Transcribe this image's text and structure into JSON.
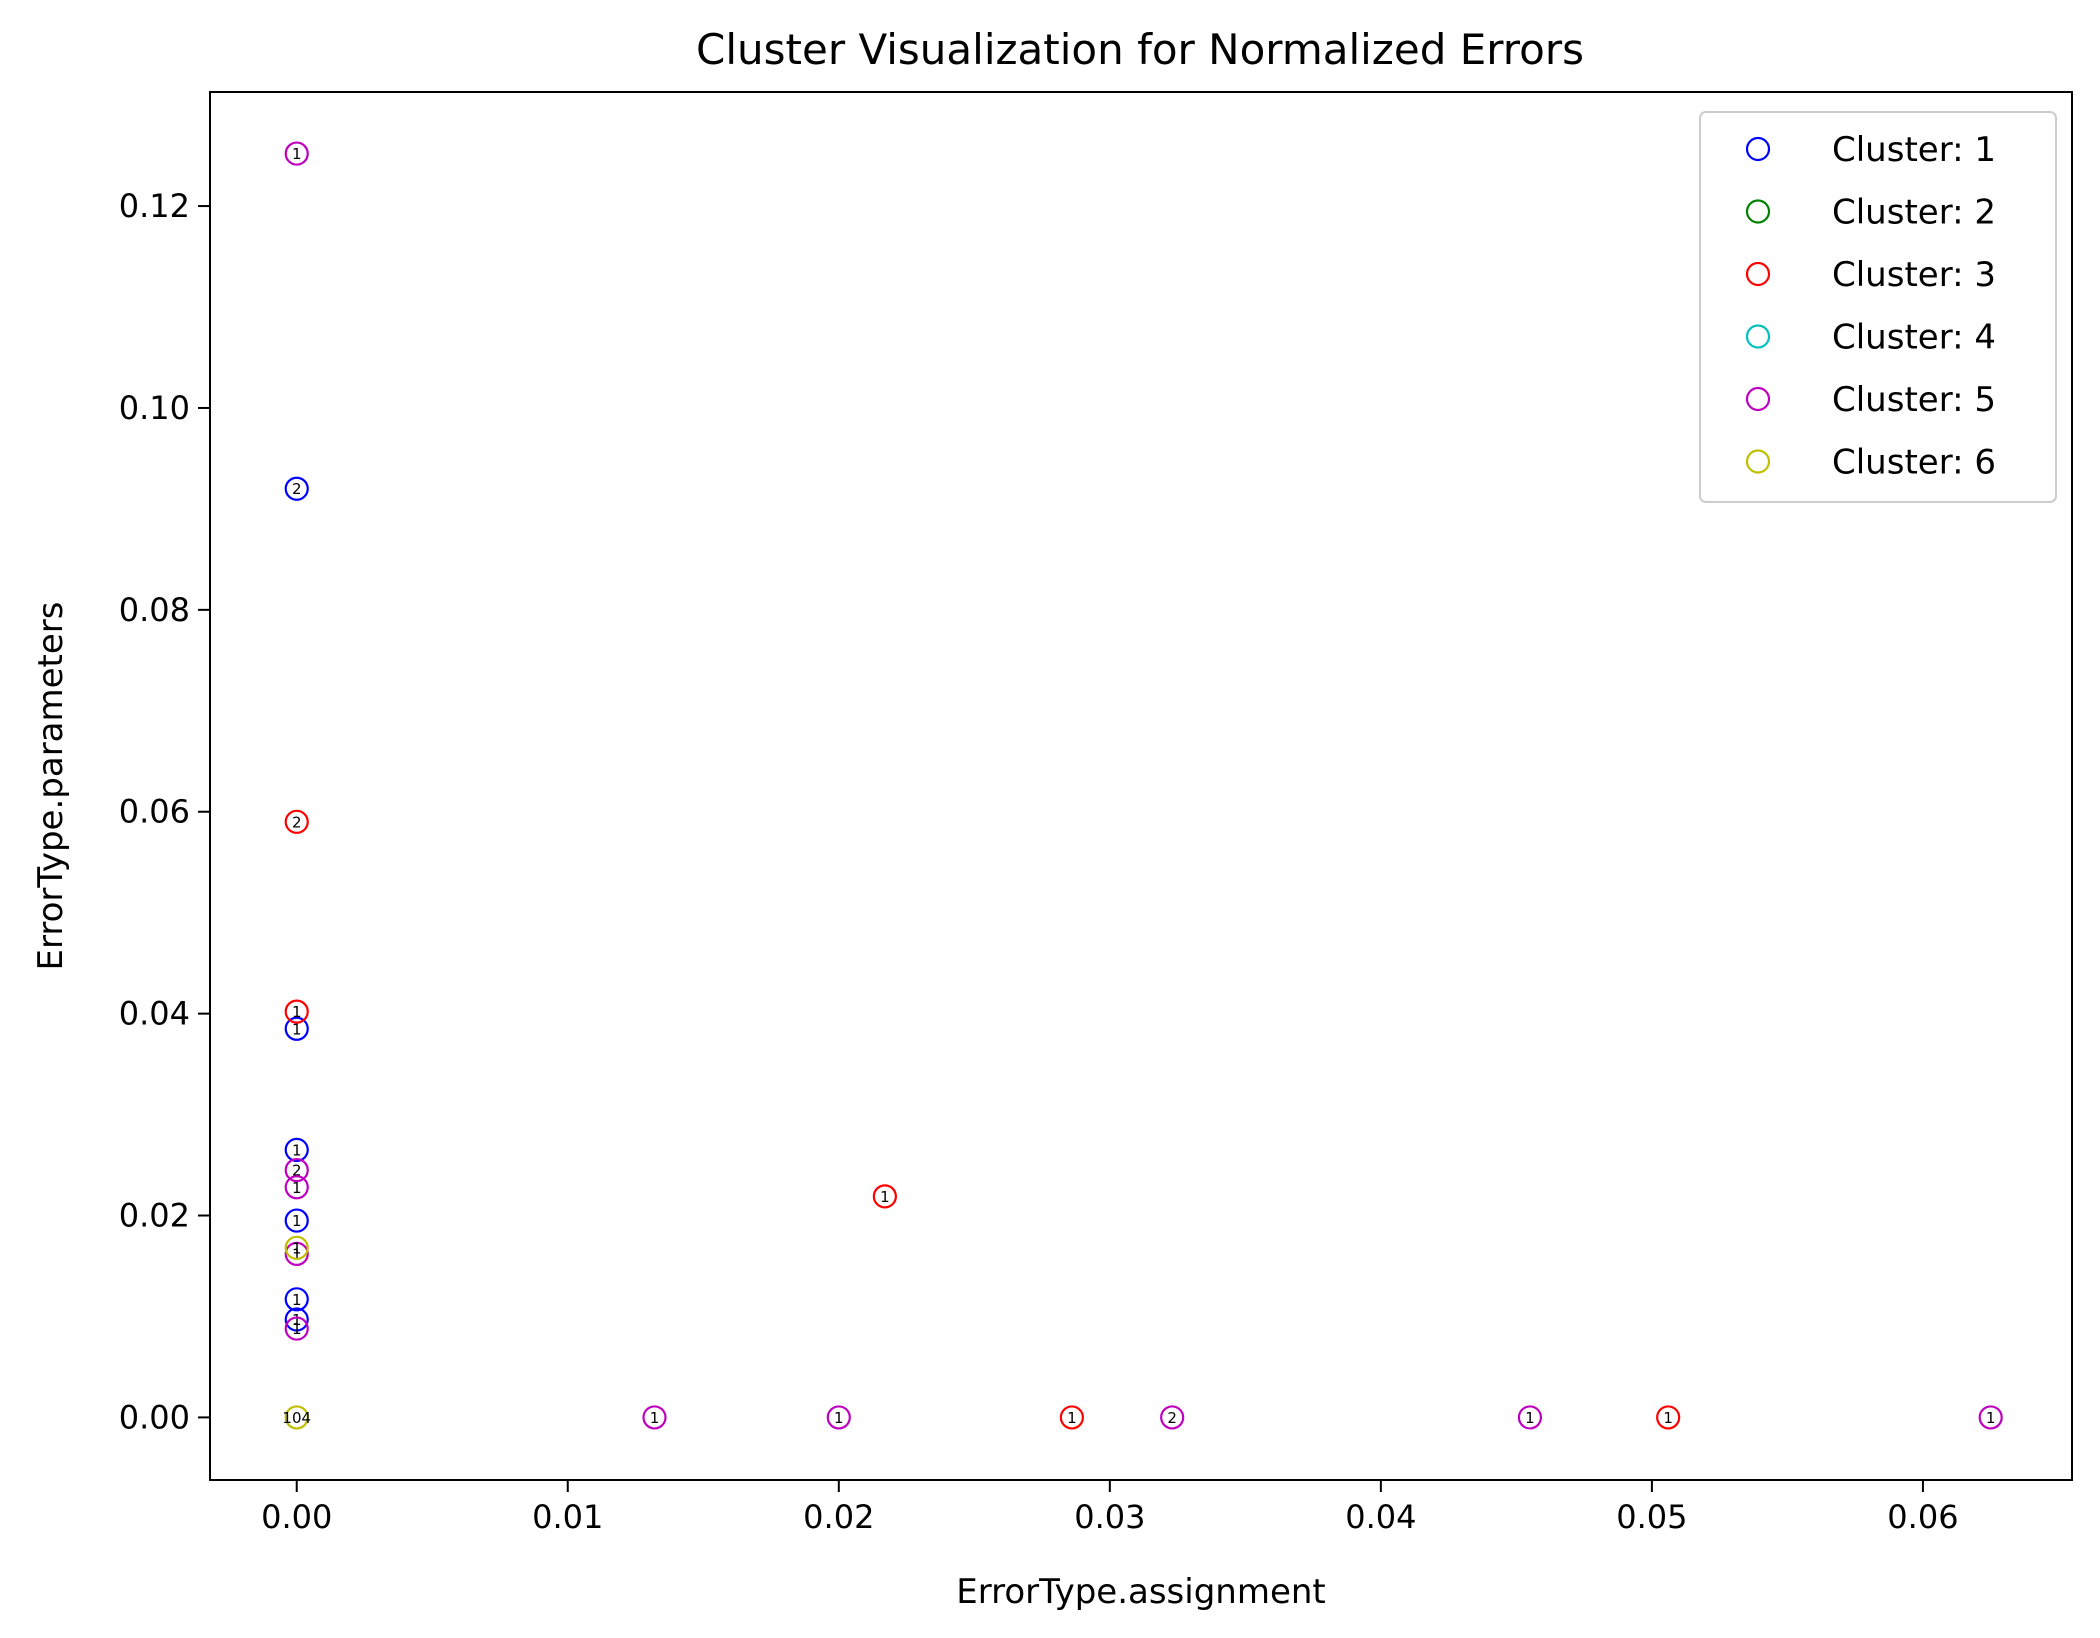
{
  "chart_data": {
    "type": "scatter",
    "title": "Cluster Visualization for Normalized Errors",
    "xlabel": "ErrorType.assignment",
    "ylabel": "ErrorType.parameters",
    "xlim": [
      -0.0032,
      0.0655
    ],
    "ylim": [
      -0.0062,
      0.1313
    ],
    "xticks": [
      0.0,
      0.01,
      0.02,
      0.03,
      0.04,
      0.05,
      0.06
    ],
    "xtick_labels": [
      "0.00",
      "0.01",
      "0.02",
      "0.03",
      "0.04",
      "0.05",
      "0.06"
    ],
    "yticks": [
      0.0,
      0.02,
      0.04,
      0.06,
      0.08,
      0.1,
      0.12
    ],
    "ytick_labels": [
      "0.00",
      "0.02",
      "0.04",
      "0.06",
      "0.08",
      "0.10",
      "0.12"
    ],
    "legend_position": "top-right",
    "series": [
      {
        "name": "Cluster: 1",
        "color": "#0000ff",
        "points": [
          {
            "x": 0.0,
            "y": 0.092,
            "label": "2"
          },
          {
            "x": 0.0,
            "y": 0.0385,
            "label": "1"
          },
          {
            "x": 0.0,
            "y": 0.0265,
            "label": "1"
          },
          {
            "x": 0.0,
            "y": 0.0195,
            "label": "1"
          },
          {
            "x": 0.0,
            "y": 0.0117,
            "label": "1"
          },
          {
            "x": 0.0,
            "y": 0.0097,
            "label": "1"
          }
        ]
      },
      {
        "name": "Cluster: 2",
        "color": "#008000",
        "points": []
      },
      {
        "name": "Cluster: 3",
        "color": "#ff0000",
        "points": [
          {
            "x": 0.0,
            "y": 0.059,
            "label": "2"
          },
          {
            "x": 0.0,
            "y": 0.0402,
            "label": "1"
          },
          {
            "x": 0.0217,
            "y": 0.0219,
            "label": "1"
          },
          {
            "x": 0.0286,
            "y": 0.0,
            "label": "1"
          },
          {
            "x": 0.0506,
            "y": 0.0,
            "label": "1"
          }
        ]
      },
      {
        "name": "Cluster: 4",
        "color": "#00bfbf",
        "points": []
      },
      {
        "name": "Cluster: 5",
        "color": "#bf00bf",
        "points": [
          {
            "x": 0.0,
            "y": 0.1252,
            "label": "1"
          },
          {
            "x": 0.0,
            "y": 0.0245,
            "label": "2"
          },
          {
            "x": 0.0,
            "y": 0.0228,
            "label": "1"
          },
          {
            "x": 0.0,
            "y": 0.0162,
            "label": "1"
          },
          {
            "x": 0.0,
            "y": 0.0088,
            "label": "1"
          },
          {
            "x": 0.0132,
            "y": 0.0,
            "label": "1"
          },
          {
            "x": 0.02,
            "y": 0.0,
            "label": "1"
          },
          {
            "x": 0.0323,
            "y": 0.0,
            "label": "2"
          },
          {
            "x": 0.0455,
            "y": 0.0,
            "label": "1"
          },
          {
            "x": 0.0625,
            "y": 0.0,
            "label": "1"
          }
        ]
      },
      {
        "name": "Cluster: 6",
        "color": "#bfbf00",
        "points": [
          {
            "x": 0.0,
            "y": 0.0168,
            "label": "1"
          },
          {
            "x": 0.0,
            "y": 0.0,
            "label": "104"
          }
        ]
      }
    ]
  }
}
